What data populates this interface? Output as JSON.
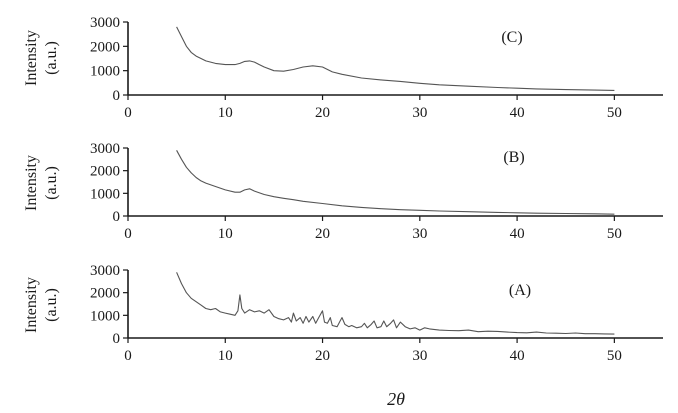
{
  "chart_data": [
    {
      "type": "line",
      "panel": "(C)",
      "ylabel_line1": "Intensity",
      "ylabel_line2": "(a.u.)",
      "xlim": [
        0,
        55
      ],
      "ylim": [
        0,
        3000
      ],
      "xticks": [
        0,
        10,
        20,
        30,
        40,
        50
      ],
      "yticks": [
        0,
        1000,
        2000,
        3000
      ],
      "grid": false,
      "series": [
        {
          "color": "#555555",
          "x": [
            5,
            5.5,
            6,
            6.5,
            7,
            7.5,
            8,
            9,
            10,
            11,
            11.5,
            12,
            12.5,
            13,
            13.5,
            14,
            15,
            16,
            17,
            18,
            19,
            20,
            21,
            22,
            24,
            26,
            28,
            30,
            32,
            35,
            38,
            40,
            42,
            45,
            48,
            50
          ],
          "y": [
            2800,
            2400,
            2000,
            1750,
            1600,
            1500,
            1400,
            1300,
            1250,
            1250,
            1300,
            1380,
            1400,
            1350,
            1250,
            1150,
            1000,
            980,
            1050,
            1150,
            1200,
            1150,
            950,
            850,
            700,
            620,
            560,
            480,
            420,
            360,
            310,
            280,
            250,
            220,
            200,
            190
          ]
        }
      ]
    },
    {
      "type": "line",
      "panel": "(B)",
      "ylabel_line1": "Intensity",
      "ylabel_line2": "(a.u.)",
      "xlim": [
        0,
        55
      ],
      "ylim": [
        0,
        3000
      ],
      "xticks": [
        0,
        10,
        20,
        30,
        40,
        50
      ],
      "yticks": [
        0,
        1000,
        2000,
        3000
      ],
      "grid": false,
      "series": [
        {
          "color": "#555555",
          "x": [
            5,
            5.5,
            6,
            6.5,
            7,
            7.5,
            8,
            9,
            10,
            11,
            11.5,
            12,
            12.5,
            13,
            14,
            15,
            16,
            17,
            18,
            20,
            22,
            24,
            26,
            28,
            30,
            32,
            35,
            38,
            40,
            42,
            45,
            48,
            50
          ],
          "y": [
            2900,
            2500,
            2150,
            1900,
            1700,
            1550,
            1450,
            1300,
            1150,
            1050,
            1050,
            1150,
            1200,
            1100,
            950,
            850,
            780,
            720,
            650,
            550,
            450,
            380,
            320,
            280,
            250,
            220,
            190,
            160,
            140,
            125,
            110,
            95,
            80
          ]
        }
      ]
    },
    {
      "type": "line",
      "panel": "(A)",
      "ylabel_line1": "Intensity",
      "ylabel_line2": "(a.u.)",
      "xlabel": "2θ",
      "xlim": [
        0,
        55
      ],
      "ylim": [
        0,
        3000
      ],
      "xticks": [
        0,
        10,
        20,
        30,
        40,
        50
      ],
      "yticks": [
        0,
        1000,
        2000,
        3000
      ],
      "grid": false,
      "series": [
        {
          "color": "#555555",
          "x": [
            5,
            5.5,
            6,
            6.5,
            7,
            7.5,
            8,
            8.5,
            9,
            9.5,
            10,
            10.5,
            11,
            11.3,
            11.5,
            11.7,
            12,
            12.5,
            13,
            13.5,
            14,
            14.5,
            15,
            15.5,
            16,
            16.5,
            16.8,
            17,
            17.3,
            17.7,
            18,
            18.3,
            18.6,
            19,
            19.3,
            19.6,
            20,
            20.2,
            20.5,
            20.8,
            21,
            21.5,
            21.8,
            22,
            22.3,
            22.7,
            23,
            23.5,
            24,
            24.3,
            24.6,
            25,
            25.3,
            25.6,
            26,
            26.3,
            26.6,
            27,
            27.3,
            27.6,
            28,
            28.5,
            29,
            29.5,
            30,
            30.5,
            31,
            32,
            33,
            34,
            35,
            36,
            37,
            38,
            39,
            40,
            41,
            42,
            43,
            44,
            45,
            46,
            47,
            48,
            49,
            50
          ],
          "y": [
            2900,
            2400,
            2000,
            1750,
            1600,
            1450,
            1300,
            1250,
            1300,
            1150,
            1100,
            1050,
            1000,
            1200,
            1900,
            1300,
            1100,
            1250,
            1150,
            1200,
            1100,
            1250,
            950,
            850,
            800,
            900,
            700,
            1100,
            750,
            900,
            650,
            950,
            700,
            950,
            650,
            900,
            1200,
            700,
            650,
            900,
            550,
            500,
            750,
            900,
            600,
            500,
            550,
            450,
            500,
            650,
            450,
            600,
            750,
            450,
            500,
            750,
            500,
            650,
            800,
            450,
            700,
            500,
            400,
            450,
            350,
            450,
            400,
            350,
            330,
            320,
            350,
            280,
            300,
            290,
            260,
            240,
            230,
            260,
            220,
            210,
            200,
            220,
            190,
            190,
            180,
            170
          ]
        }
      ]
    }
  ]
}
